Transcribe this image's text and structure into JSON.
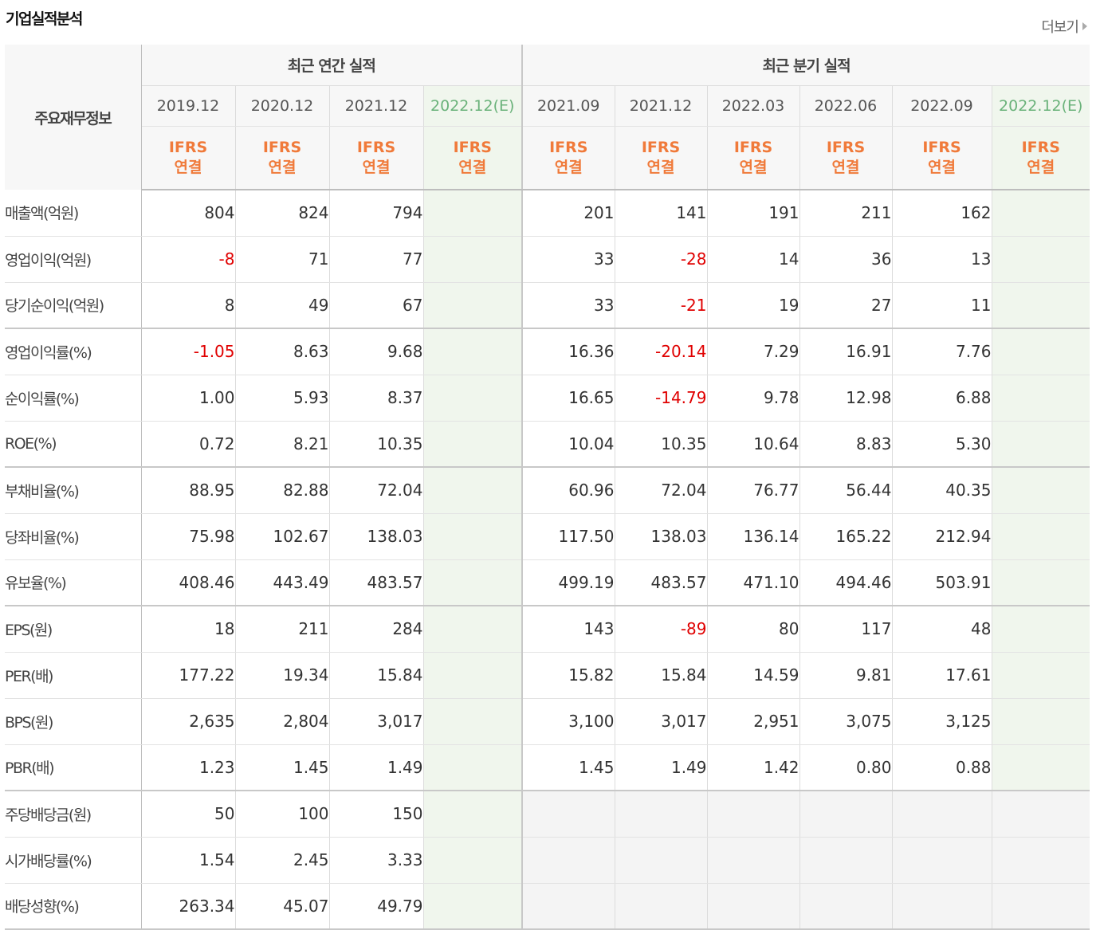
{
  "section_title": "기업실적분석",
  "more_label": "더보기",
  "header": {
    "corner_label": "주요재무정보",
    "annual_label": "최근 연간 실적",
    "quarterly_label": "최근 분기 실적",
    "annual_periods": [
      {
        "date": "2019.12",
        "est": ""
      },
      {
        "date": "2020.12",
        "est": ""
      },
      {
        "date": "2021.12",
        "est": ""
      },
      {
        "date": "2022.12",
        "est": "(E)"
      }
    ],
    "quarter_periods": [
      {
        "date": "2021.09",
        "est": ""
      },
      {
        "date": "2021.12",
        "est": ""
      },
      {
        "date": "2022.03",
        "est": ""
      },
      {
        "date": "2022.06",
        "est": ""
      },
      {
        "date": "2022.09",
        "est": ""
      },
      {
        "date": "2022.12",
        "est": "(E)"
      }
    ],
    "ifrs_line1": "IFRS",
    "ifrs_line2": "연결"
  },
  "rows": [
    {
      "label": "매출액(억원)",
      "annual": [
        "804",
        "824",
        "794",
        ""
      ],
      "quarter": [
        "201",
        "141",
        "191",
        "211",
        "162",
        ""
      ],
      "group_end": false,
      "dividend": false
    },
    {
      "label": "영업이익(억원)",
      "annual": [
        "-8",
        "71",
        "77",
        ""
      ],
      "quarter": [
        "33",
        "-28",
        "14",
        "36",
        "13",
        ""
      ],
      "group_end": false,
      "dividend": false
    },
    {
      "label": "당기순이익(억원)",
      "annual": [
        "8",
        "49",
        "67",
        ""
      ],
      "quarter": [
        "33",
        "-21",
        "19",
        "27",
        "11",
        ""
      ],
      "group_end": true,
      "dividend": false
    },
    {
      "label": "영업이익률(%)",
      "annual": [
        "-1.05",
        "8.63",
        "9.68",
        ""
      ],
      "quarter": [
        "16.36",
        "-20.14",
        "7.29",
        "16.91",
        "7.76",
        ""
      ],
      "group_end": false,
      "dividend": false
    },
    {
      "label": "순이익률(%)",
      "annual": [
        "1.00",
        "5.93",
        "8.37",
        ""
      ],
      "quarter": [
        "16.65",
        "-14.79",
        "9.78",
        "12.98",
        "6.88",
        ""
      ],
      "group_end": false,
      "dividend": false
    },
    {
      "label": "ROE(%)",
      "annual": [
        "0.72",
        "8.21",
        "10.35",
        ""
      ],
      "quarter": [
        "10.04",
        "10.35",
        "10.64",
        "8.83",
        "5.30",
        ""
      ],
      "group_end": true,
      "dividend": false
    },
    {
      "label": "부채비율(%)",
      "annual": [
        "88.95",
        "82.88",
        "72.04",
        ""
      ],
      "quarter": [
        "60.96",
        "72.04",
        "76.77",
        "56.44",
        "40.35",
        ""
      ],
      "group_end": false,
      "dividend": false
    },
    {
      "label": "당좌비율(%)",
      "annual": [
        "75.98",
        "102.67",
        "138.03",
        ""
      ],
      "quarter": [
        "117.50",
        "138.03",
        "136.14",
        "165.22",
        "212.94",
        ""
      ],
      "group_end": false,
      "dividend": false
    },
    {
      "label": "유보율(%)",
      "annual": [
        "408.46",
        "443.49",
        "483.57",
        ""
      ],
      "quarter": [
        "499.19",
        "483.57",
        "471.10",
        "494.46",
        "503.91",
        ""
      ],
      "group_end": true,
      "dividend": false
    },
    {
      "label": "EPS(원)",
      "annual": [
        "18",
        "211",
        "284",
        ""
      ],
      "quarter": [
        "143",
        "-89",
        "80",
        "117",
        "48",
        ""
      ],
      "group_end": false,
      "dividend": false
    },
    {
      "label": "PER(배)",
      "annual": [
        "177.22",
        "19.34",
        "15.84",
        ""
      ],
      "quarter": [
        "15.82",
        "15.84",
        "14.59",
        "9.81",
        "17.61",
        ""
      ],
      "group_end": false,
      "dividend": false
    },
    {
      "label": "BPS(원)",
      "annual": [
        "2,635",
        "2,804",
        "3,017",
        ""
      ],
      "quarter": [
        "3,100",
        "3,017",
        "2,951",
        "3,075",
        "3,125",
        ""
      ],
      "group_end": false,
      "dividend": false
    },
    {
      "label": "PBR(배)",
      "annual": [
        "1.23",
        "1.45",
        "1.49",
        ""
      ],
      "quarter": [
        "1.45",
        "1.49",
        "1.42",
        "0.80",
        "0.88",
        ""
      ],
      "group_end": true,
      "dividend": false
    },
    {
      "label": "주당배당금(원)",
      "annual": [
        "50",
        "100",
        "150",
        ""
      ],
      "quarter": [
        "",
        "",
        "",
        "",
        "",
        ""
      ],
      "group_end": false,
      "dividend": true
    },
    {
      "label": "시가배당률(%)",
      "annual": [
        "1.54",
        "2.45",
        "3.33",
        ""
      ],
      "quarter": [
        "",
        "",
        "",
        "",
        "",
        ""
      ],
      "group_end": false,
      "dividend": true
    },
    {
      "label": "배당성향(%)",
      "annual": [
        "263.34",
        "45.07",
        "49.79",
        ""
      ],
      "quarter": [
        "",
        "",
        "",
        "",
        "",
        ""
      ],
      "group_end": true,
      "dividend": true
    }
  ]
}
